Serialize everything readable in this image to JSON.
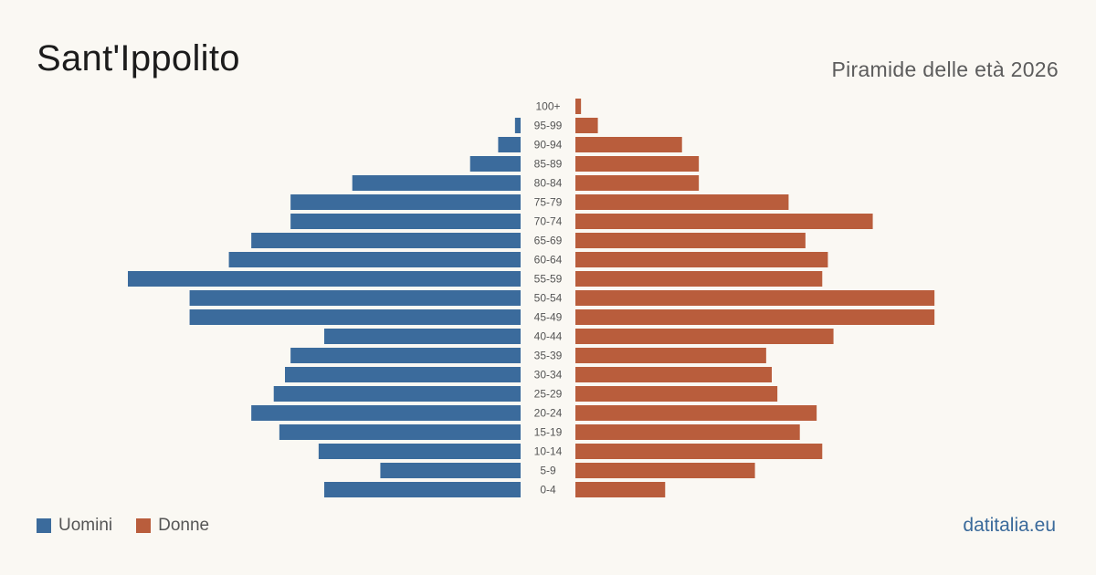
{
  "title": "Sant'Ippolito",
  "subtitle": "Piramide delle età 2026",
  "brand": "datitalia.eu",
  "colors": {
    "men": "#3b6b9c",
    "women": "#b95d3c",
    "background": "#faf8f3"
  },
  "legend": {
    "men_label": "Uomini",
    "women_label": "Donne"
  },
  "chart_data": {
    "type": "bar",
    "orientation": "horizontal-pyramid",
    "categories": [
      "100+",
      "95-99",
      "90-94",
      "85-89",
      "80-84",
      "75-79",
      "70-74",
      "65-69",
      "60-64",
      "55-59",
      "50-54",
      "45-49",
      "40-44",
      "35-39",
      "30-34",
      "25-29",
      "20-24",
      "15-19",
      "10-14",
      "5-9",
      "0-4"
    ],
    "series": [
      {
        "name": "Uomini",
        "values": [
          0,
          1,
          4,
          9,
          30,
          41,
          41,
          48,
          52,
          70,
          59,
          59,
          35,
          41,
          42,
          44,
          48,
          43,
          36,
          25,
          35
        ]
      },
      {
        "name": "Donne",
        "values": [
          1,
          4,
          19,
          22,
          22,
          38,
          53,
          41,
          45,
          44,
          64,
          64,
          46,
          34,
          35,
          36,
          43,
          40,
          44,
          32,
          16
        ]
      }
    ],
    "xlim": [
      0,
      70
    ],
    "grid": false,
    "legend": "bottom-left"
  }
}
